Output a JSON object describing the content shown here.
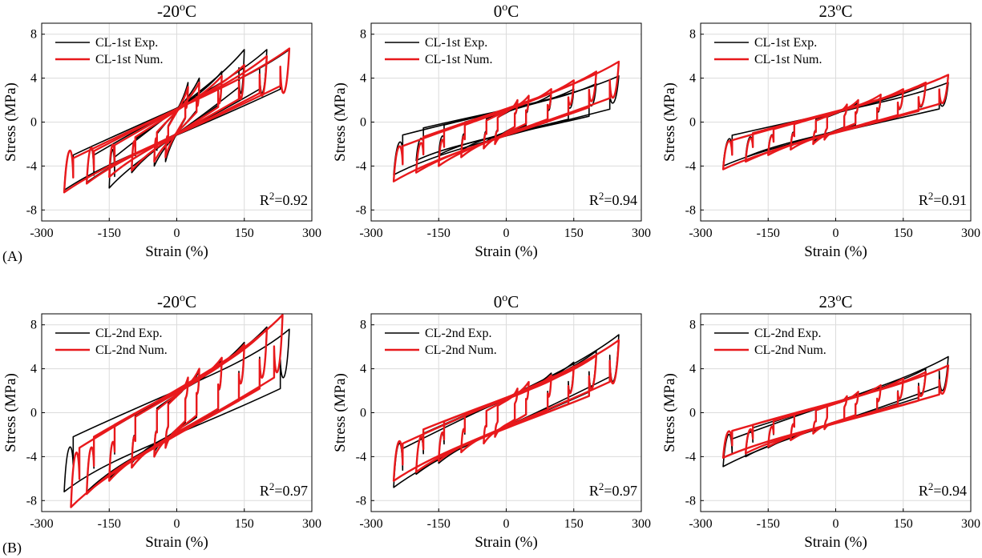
{
  "figure": {
    "row_labels": [
      "(A)",
      "(B)"
    ],
    "xlabel": "Strain (%)",
    "ylabel": "Stress (MPa)",
    "xticks": [
      "-300",
      "-150",
      "0",
      "150",
      "300"
    ],
    "yticks": [
      "8",
      "4",
      "0",
      "-4",
      "-8"
    ],
    "colors": {
      "exp": "#000000",
      "num": "#e8191c",
      "grid": "#dcdcdc"
    }
  },
  "chart_data": [
    {
      "type": "line",
      "row": 0,
      "col": 0,
      "title_base": "-20",
      "title_sup": "o",
      "title_unit": "C",
      "xlabel": "Strain (%)",
      "ylabel": "Stress (MPa)",
      "xlim": [
        -300,
        300
      ],
      "ylim": [
        -9,
        9
      ],
      "grid": true,
      "legend": "top-left",
      "r2_base": "R",
      "r2_sup": "2",
      "r2_val": "=0.92",
      "series": [
        {
          "name": "CL-1st Exp.",
          "color": "#000000",
          "loops": [
            {
              "a": 25,
              "top": 3.6,
              "bot": -3.6,
              "yield": 1.2
            },
            {
              "a": 50,
              "top": 4.0,
              "bot": -4.0,
              "yield": 1.3
            },
            {
              "a": 100,
              "top": 4.6,
              "bot": -4.6,
              "yield": 1.4
            },
            {
              "a": 150,
              "top": 6.6,
              "bot": -6.0,
              "yield": 1.5
            },
            {
              "a": 200,
              "top": 6.6,
              "bot": -5.5,
              "yield": 1.6
            },
            {
              "a": 250,
              "top": 6.6,
              "bot": -6.2,
              "yield": 1.6
            }
          ]
        },
        {
          "name": "CL-1st Num.",
          "color": "#e8191c",
          "loops": [
            {
              "a": 25,
              "top": 3.2,
              "bot": -3.2,
              "yield": 1.1
            },
            {
              "a": 50,
              "top": 3.6,
              "bot": -3.6,
              "yield": 1.2
            },
            {
              "a": 100,
              "top": 4.2,
              "bot": -4.4,
              "yield": 1.3
            },
            {
              "a": 150,
              "top": 5.2,
              "bot": -5.0,
              "yield": 1.4
            },
            {
              "a": 200,
              "top": 6.0,
              "bot": -5.6,
              "yield": 1.5
            },
            {
              "a": 250,
              "top": 6.7,
              "bot": -6.4,
              "yield": 1.5
            }
          ]
        }
      ]
    },
    {
      "type": "line",
      "row": 0,
      "col": 1,
      "title_base": "0",
      "title_sup": "o",
      "title_unit": "C",
      "xlabel": "Strain (%)",
      "ylabel": "Stress (MPa)",
      "xlim": [
        -300,
        300
      ],
      "ylim": [
        -9,
        9
      ],
      "grid": true,
      "legend": "top-left",
      "r2_base": "R",
      "r2_sup": "2",
      "r2_val": "=0.94",
      "series": [
        {
          "name": "CL-1st Exp.",
          "color": "#000000",
          "loops": [
            {
              "a": 25,
              "top": 1.8,
              "bot": -1.8,
              "yield": 1.0
            },
            {
              "a": 50,
              "top": 2.0,
              "bot": -2.0,
              "yield": 1.1
            },
            {
              "a": 100,
              "top": 2.5,
              "bot": -2.6,
              "yield": 1.2
            },
            {
              "a": 150,
              "top": 3.0,
              "bot": -3.0,
              "yield": 1.3
            },
            {
              "a": 200,
              "top": 3.5,
              "bot": -3.5,
              "yield": 1.4
            },
            {
              "a": 250,
              "top": 4.2,
              "bot": -4.8,
              "yield": 1.4
            }
          ]
        },
        {
          "name": "CL-1st Num.",
          "color": "#e8191c",
          "loops": [
            {
              "a": 25,
              "top": 2.0,
              "bot": -2.0,
              "yield": 1.1
            },
            {
              "a": 50,
              "top": 2.4,
              "bot": -2.4,
              "yield": 1.2
            },
            {
              "a": 100,
              "top": 3.0,
              "bot": -3.2,
              "yield": 1.3
            },
            {
              "a": 150,
              "top": 3.8,
              "bot": -4.0,
              "yield": 1.4
            },
            {
              "a": 200,
              "top": 4.6,
              "bot": -4.6,
              "yield": 1.5
            },
            {
              "a": 250,
              "top": 5.5,
              "bot": -5.4,
              "yield": 1.5
            }
          ]
        }
      ]
    },
    {
      "type": "line",
      "row": 0,
      "col": 2,
      "title_base": "23",
      "title_sup": "o",
      "title_unit": "C",
      "xlabel": "Strain (%)",
      "ylabel": "Stress (MPa)",
      "xlim": [
        -300,
        300
      ],
      "ylim": [
        -9,
        9
      ],
      "grid": true,
      "legend": "top-left",
      "r2_base": "R",
      "r2_sup": "2",
      "r2_val": "=0.91",
      "series": [
        {
          "name": "CL-1st Exp.",
          "color": "#000000",
          "loops": [
            {
              "a": 25,
              "top": 1.5,
              "bot": -1.5,
              "yield": 0.9
            },
            {
              "a": 50,
              "top": 1.8,
              "bot": -1.8,
              "yield": 1.0
            },
            {
              "a": 100,
              "top": 2.2,
              "bot": -2.2,
              "yield": 1.0
            },
            {
              "a": 150,
              "top": 2.8,
              "bot": -2.8,
              "yield": 1.1
            },
            {
              "a": 200,
              "top": 3.4,
              "bot": -3.2,
              "yield": 1.1
            },
            {
              "a": 250,
              "top": 3.6,
              "bot": -4.0,
              "yield": 1.1
            }
          ]
        },
        {
          "name": "CL-1st Num.",
          "color": "#e8191c",
          "loops": [
            {
              "a": 25,
              "top": 1.6,
              "bot": -1.6,
              "yield": 1.0
            },
            {
              "a": 50,
              "top": 2.0,
              "bot": -2.0,
              "yield": 1.0
            },
            {
              "a": 100,
              "top": 2.5,
              "bot": -2.5,
              "yield": 1.1
            },
            {
              "a": 150,
              "top": 3.0,
              "bot": -3.0,
              "yield": 1.1
            },
            {
              "a": 200,
              "top": 3.6,
              "bot": -3.6,
              "yield": 1.2
            },
            {
              "a": 250,
              "top": 4.3,
              "bot": -4.3,
              "yield": 1.2
            }
          ]
        }
      ]
    },
    {
      "type": "line",
      "row": 1,
      "col": 0,
      "title_base": "-20",
      "title_sup": "o",
      "title_unit": "C",
      "xlabel": "Strain (%)",
      "ylabel": "Stress (MPa)",
      "xlim": [
        -300,
        300
      ],
      "ylim": [
        -9,
        9
      ],
      "grid": true,
      "legend": "top-left",
      "r2_base": "R",
      "r2_sup": "2",
      "r2_val": "=0.97",
      "series": [
        {
          "name": "CL-2nd Exp.",
          "color": "#000000",
          "loops": [
            {
              "a": 25,
              "top": 3.0,
              "bot": -3.0,
              "yield": 1.8
            },
            {
              "a": 50,
              "top": 3.8,
              "bot": -3.6,
              "yield": 2.0
            },
            {
              "a": 100,
              "top": 4.8,
              "bot": -4.6,
              "yield": 2.2
            },
            {
              "a": 150,
              "top": 6.4,
              "bot": -6.0,
              "yield": 2.4
            },
            {
              "a": 200,
              "top": 7.8,
              "bot": -7.2,
              "yield": 2.5
            },
            {
              "a": 250,
              "top": 7.6,
              "bot": -7.2,
              "yield": 2.5
            }
          ]
        },
        {
          "name": "CL-2nd Num.",
          "color": "#e8191c",
          "loops": [
            {
              "a": 25,
              "top": 3.2,
              "bot": -3.2,
              "yield": 1.8
            },
            {
              "a": 50,
              "top": 4.0,
              "bot": -4.0,
              "yield": 2.0
            },
            {
              "a": 100,
              "top": 5.0,
              "bot": -5.0,
              "yield": 2.2
            },
            {
              "a": 150,
              "top": 6.2,
              "bot": -6.2,
              "yield": 2.4
            },
            {
              "a": 200,
              "top": 7.6,
              "bot": -7.4,
              "yield": 2.5
            },
            {
              "a": 235,
              "top": 8.9,
              "bot": -8.6,
              "yield": 2.6
            }
          ]
        }
      ]
    },
    {
      "type": "line",
      "row": 1,
      "col": 1,
      "title_base": "0",
      "title_sup": "o",
      "title_unit": "C",
      "xlabel": "Strain (%)",
      "ylabel": "Stress (MPa)",
      "xlim": [
        -300,
        300
      ],
      "ylim": [
        -9,
        9
      ],
      "grid": true,
      "legend": "top-left",
      "r2_base": "R",
      "r2_sup": "2",
      "r2_val": "=0.97",
      "series": [
        {
          "name": "CL-2nd Exp.",
          "color": "#000000",
          "loops": [
            {
              "a": 25,
              "top": 2.2,
              "bot": -2.2,
              "yield": 1.3
            },
            {
              "a": 50,
              "top": 2.8,
              "bot": -2.8,
              "yield": 1.4
            },
            {
              "a": 100,
              "top": 3.6,
              "bot": -3.6,
              "yield": 1.5
            },
            {
              "a": 150,
              "top": 4.6,
              "bot": -4.6,
              "yield": 1.6
            },
            {
              "a": 200,
              "top": 5.6,
              "bot": -5.6,
              "yield": 1.7
            },
            {
              "a": 250,
              "top": 7.1,
              "bot": -6.8,
              "yield": 1.7
            }
          ]
        },
        {
          "name": "CL-2nd Num.",
          "color": "#e8191c",
          "loops": [
            {
              "a": 25,
              "top": 2.2,
              "bot": -2.2,
              "yield": 1.3
            },
            {
              "a": 50,
              "top": 2.8,
              "bot": -2.8,
              "yield": 1.4
            },
            {
              "a": 100,
              "top": 3.4,
              "bot": -3.6,
              "yield": 1.5
            },
            {
              "a": 150,
              "top": 4.2,
              "bot": -4.4,
              "yield": 1.6
            },
            {
              "a": 200,
              "top": 5.2,
              "bot": -5.4,
              "yield": 1.7
            },
            {
              "a": 250,
              "top": 6.6,
              "bot": -6.2,
              "yield": 1.7
            }
          ]
        }
      ]
    },
    {
      "type": "line",
      "row": 1,
      "col": 2,
      "title_base": "23",
      "title_sup": "o",
      "title_unit": "C",
      "xlabel": "Strain (%)",
      "ylabel": "Stress (MPa)",
      "xlim": [
        -300,
        300
      ],
      "ylim": [
        -9,
        9
      ],
      "grid": true,
      "legend": "top-left",
      "r2_base": "R",
      "r2_sup": "2",
      "r2_val": "=0.94",
      "series": [
        {
          "name": "CL-2nd Exp.",
          "color": "#000000",
          "loops": [
            {
              "a": 25,
              "top": 1.4,
              "bot": -1.4,
              "yield": 1.0
            },
            {
              "a": 50,
              "top": 1.8,
              "bot": -1.8,
              "yield": 1.0
            },
            {
              "a": 100,
              "top": 2.4,
              "bot": -2.4,
              "yield": 1.1
            },
            {
              "a": 150,
              "top": 3.2,
              "bot": -3.2,
              "yield": 1.1
            },
            {
              "a": 200,
              "top": 4.0,
              "bot": -4.0,
              "yield": 1.2
            },
            {
              "a": 250,
              "top": 5.1,
              "bot": -4.9,
              "yield": 1.2
            }
          ]
        },
        {
          "name": "CL-2nd Num.",
          "color": "#e8191c",
          "loops": [
            {
              "a": 25,
              "top": 1.5,
              "bot": -1.5,
              "yield": 1.0
            },
            {
              "a": 50,
              "top": 1.9,
              "bot": -1.9,
              "yield": 1.0
            },
            {
              "a": 100,
              "top": 2.5,
              "bot": -2.5,
              "yield": 1.1
            },
            {
              "a": 150,
              "top": 3.1,
              "bot": -3.1,
              "yield": 1.1
            },
            {
              "a": 200,
              "top": 3.7,
              "bot": -3.7,
              "yield": 1.2
            },
            {
              "a": 250,
              "top": 4.3,
              "bot": -4.1,
              "yield": 1.2
            }
          ]
        }
      ]
    }
  ]
}
